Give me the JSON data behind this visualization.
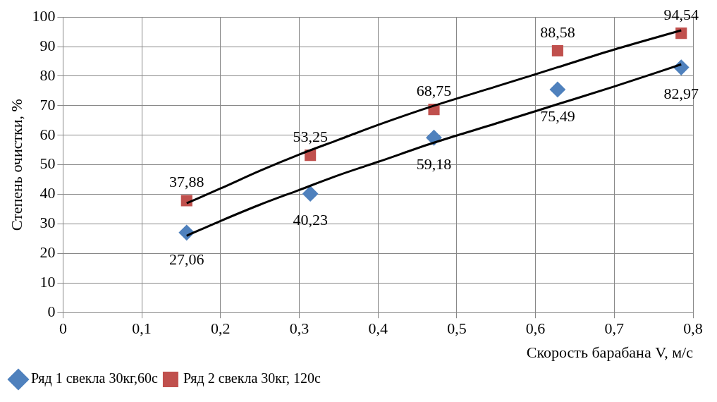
{
  "chart_data": {
    "type": "scatter",
    "xlabel": "Скорость барабана V, м/с",
    "ylabel": "Степень очистки, %",
    "xlim": [
      0,
      0.8
    ],
    "ylim": [
      0,
      100
    ],
    "xticks": [
      0,
      {
        "value": 0.1,
        "label": "0,1"
      },
      {
        "value": 0.2,
        "label": "0,2"
      },
      {
        "value": 0.3,
        "label": "0,3"
      },
      {
        "value": 0.4,
        "label": "0,4"
      },
      {
        "value": 0.5,
        "label": "0,5"
      },
      {
        "value": 0.6,
        "label": "0,6"
      },
      {
        "value": 0.7,
        "label": "0,7"
      },
      {
        "value": 0.8,
        "label": "0,8"
      }
    ],
    "yticks": [
      0,
      10,
      20,
      30,
      40,
      50,
      60,
      70,
      80,
      90,
      100
    ],
    "grid": true,
    "legend": "bottom left",
    "series": [
      {
        "name": "Ряд 1 свекла 30кг,60с",
        "color": "#4f81bd",
        "marker": "diamond",
        "x": [
          0.157,
          0.314,
          0.471,
          0.628,
          0.785
        ],
        "values": [
          27.06,
          40.23,
          59.18,
          75.49,
          82.97
        ],
        "value_labels": [
          "27,06",
          "40,23",
          "59,18",
          "75,49",
          "82,97"
        ]
      },
      {
        "name": "Ряд 2 свекла 30кг, 120с",
        "color": "#c0504d",
        "marker": "square",
        "x": [
          0.157,
          0.314,
          0.471,
          0.628,
          0.785
        ],
        "values": [
          37.88,
          53.25,
          68.75,
          88.58,
          94.54
        ],
        "value_labels": [
          "37,88",
          "53,25",
          "68,75",
          "88,58",
          "94,54"
        ]
      },
      {
        "type": "line",
        "color": "#000000",
        "marker": "none",
        "x": [
          0.157,
          0.2,
          0.25,
          0.3,
          0.35,
          0.4,
          0.471,
          0.55,
          0.628,
          0.7,
          0.785
        ],
        "values": [
          26,
          31,
          36.5,
          41.5,
          46.5,
          51,
          57.5,
          64,
          70.5,
          76.5,
          84
        ]
      },
      {
        "type": "line",
        "color": "#000000",
        "marker": "none",
        "x": [
          0.157,
          0.2,
          0.25,
          0.3,
          0.35,
          0.4,
          0.471,
          0.55,
          0.628,
          0.7,
          0.785
        ],
        "values": [
          37,
          42,
          48,
          53.5,
          58.5,
          63.5,
          70,
          76.5,
          83,
          89,
          95.5
        ]
      }
    ]
  }
}
